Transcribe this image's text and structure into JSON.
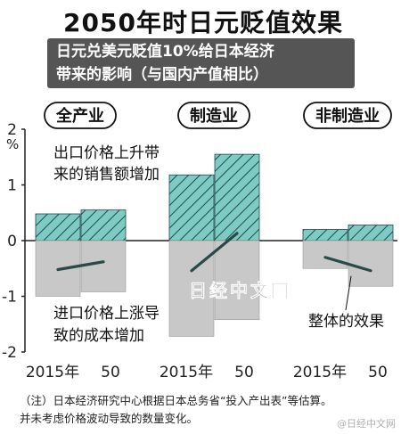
{
  "title": "2050年时日元贬值效果",
  "subtitle": [
    "日元兑美元贬值10%给日本经济",
    "带来的影响（与国内产值相比）"
  ],
  "chart_data": {
    "type": "bar",
    "y_unit_label": "%",
    "ylim": [
      -2,
      2
    ],
    "y_ticks": [
      2,
      1,
      0,
      -1,
      -2
    ],
    "groups": [
      {
        "name": "全产业",
        "x_labels": [
          "2015年",
          "50"
        ],
        "export_increase": [
          0.48,
          0.55
        ],
        "import_cost_increase": [
          -1.0,
          -0.92
        ],
        "net": [
          -0.52,
          -0.38
        ]
      },
      {
        "name": "制造业",
        "x_labels": [
          "2015年",
          "50"
        ],
        "export_increase": [
          1.18,
          1.55
        ],
        "import_cost_increase": [
          -1.72,
          -1.42
        ],
        "net": [
          -0.54,
          0.13
        ]
      },
      {
        "name": "非制造业",
        "x_labels": [
          "2015年",
          "50"
        ],
        "export_increase": [
          0.2,
          0.28
        ],
        "import_cost_increase": [
          -0.5,
          -0.82
        ],
        "net": [
          -0.3,
          -0.54
        ]
      }
    ],
    "annotations": {
      "export": [
        "出口价格上升带",
        "来的销售额增加"
      ],
      "import": [
        "进口价格上涨导",
        "致的成本增加"
      ],
      "net": "整体的效果"
    },
    "colors": {
      "export_fill": "#7ecbc4",
      "import_fill": "#c8c8c8",
      "net_line": "#2a4a4a",
      "hatch": "#1e4a4a"
    }
  },
  "watermark_text": "日经中文网",
  "note": [
    "（注）日本经济研究中心根据日本总务省“投入产出表”等估算。",
    "并未考虑价格波动导致的数量变化。"
  ],
  "corner_mark": "@日经中文网"
}
